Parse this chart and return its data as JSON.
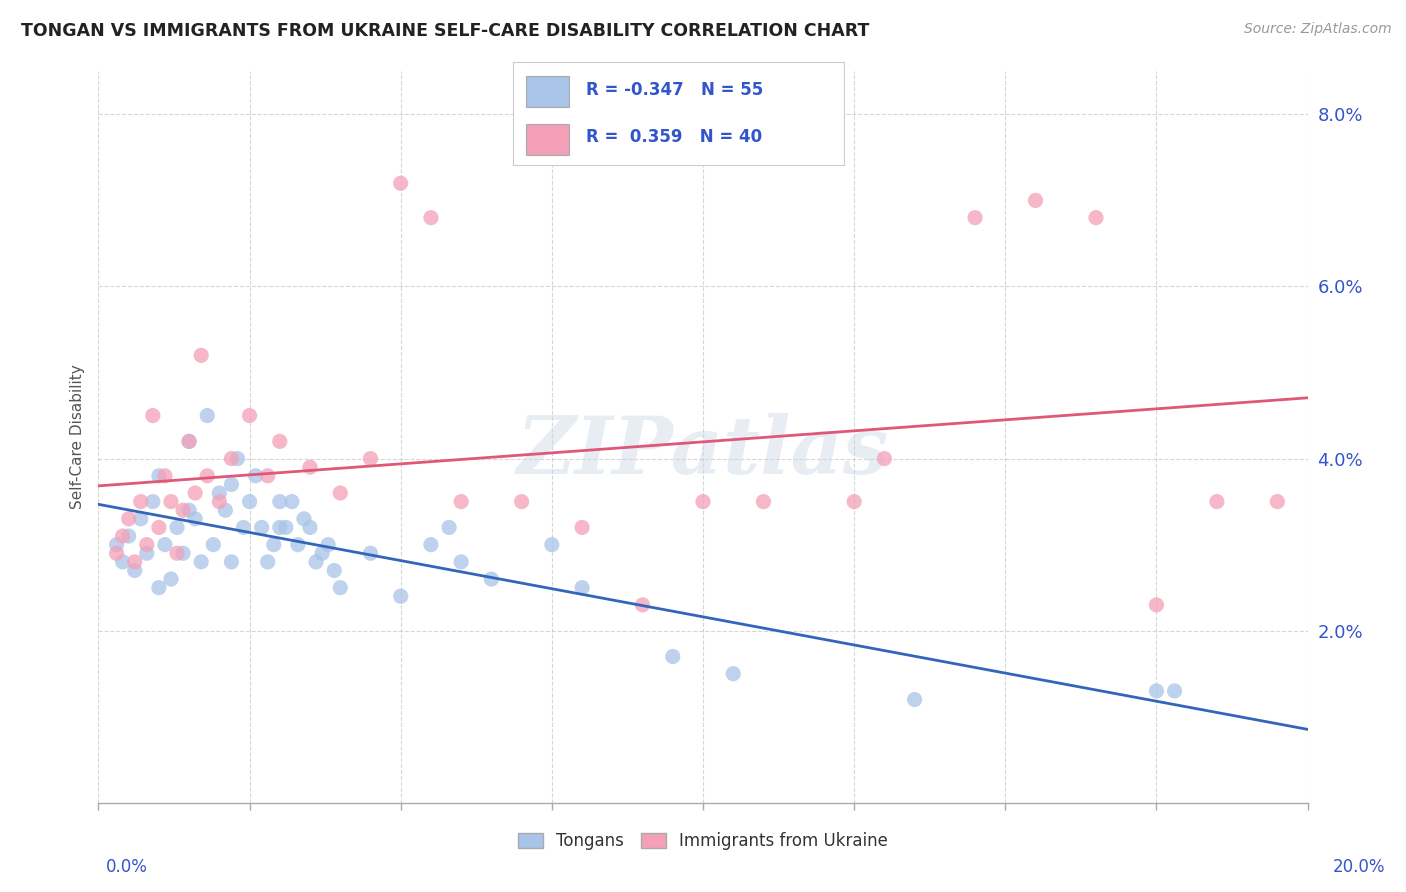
{
  "title": "TONGAN VS IMMIGRANTS FROM UKRAINE SELF-CARE DISABILITY CORRELATION CHART",
  "source": "Source: ZipAtlas.com",
  "ylabel": "Self-Care Disability",
  "xlim": [
    0.0,
    20.0
  ],
  "ylim": [
    0.0,
    8.5
  ],
  "yticks": [
    2.0,
    4.0,
    6.0,
    8.0
  ],
  "xticks": [
    0.0,
    2.5,
    5.0,
    7.5,
    10.0,
    12.5,
    15.0,
    17.5,
    20.0
  ],
  "tongan_R": -0.347,
  "tongan_N": 55,
  "ukraine_R": 0.359,
  "ukraine_N": 40,
  "legend_labels": [
    "Tongans",
    "Immigrants from Ukraine"
  ],
  "tongan_color": "#a8c4e8",
  "ukraine_color": "#f4a0b8",
  "tongan_line_color": "#3366bb",
  "ukraine_line_color": "#e05878",
  "watermark": "ZIPatlas",
  "background_color": "#ffffff",
  "grid_color": "#cccccc",
  "title_color": "#222222",
  "axis_label_color": "#3355cc",
  "tongan_points": [
    [
      0.3,
      3.0
    ],
    [
      0.4,
      2.8
    ],
    [
      0.5,
      3.1
    ],
    [
      0.6,
      2.7
    ],
    [
      0.7,
      3.3
    ],
    [
      0.8,
      2.9
    ],
    [
      0.9,
      3.5
    ],
    [
      1.0,
      3.8
    ],
    [
      1.0,
      2.5
    ],
    [
      1.1,
      3.0
    ],
    [
      1.2,
      2.6
    ],
    [
      1.3,
      3.2
    ],
    [
      1.4,
      2.9
    ],
    [
      1.5,
      4.2
    ],
    [
      1.5,
      3.4
    ],
    [
      1.6,
      3.3
    ],
    [
      1.7,
      2.8
    ],
    [
      1.8,
      4.5
    ],
    [
      1.9,
      3.0
    ],
    [
      2.0,
      3.6
    ],
    [
      2.1,
      3.4
    ],
    [
      2.2,
      3.7
    ],
    [
      2.2,
      2.8
    ],
    [
      2.3,
      4.0
    ],
    [
      2.4,
      3.2
    ],
    [
      2.5,
      3.5
    ],
    [
      2.6,
      3.8
    ],
    [
      2.7,
      3.2
    ],
    [
      2.8,
      2.8
    ],
    [
      2.9,
      3.0
    ],
    [
      3.0,
      3.5
    ],
    [
      3.0,
      3.2
    ],
    [
      3.1,
      3.2
    ],
    [
      3.2,
      3.5
    ],
    [
      3.3,
      3.0
    ],
    [
      3.4,
      3.3
    ],
    [
      3.5,
      3.2
    ],
    [
      3.6,
      2.8
    ],
    [
      3.7,
      2.9
    ],
    [
      3.8,
      3.0
    ],
    [
      3.9,
      2.7
    ],
    [
      4.0,
      2.5
    ],
    [
      4.5,
      2.9
    ],
    [
      5.0,
      2.4
    ],
    [
      5.5,
      3.0
    ],
    [
      5.8,
      3.2
    ],
    [
      6.0,
      2.8
    ],
    [
      6.5,
      2.6
    ],
    [
      7.5,
      3.0
    ],
    [
      8.0,
      2.5
    ],
    [
      9.5,
      1.7
    ],
    [
      10.5,
      1.5
    ],
    [
      13.5,
      1.2
    ],
    [
      17.5,
      1.3
    ],
    [
      17.8,
      1.3
    ]
  ],
  "ukraine_points": [
    [
      0.3,
      2.9
    ],
    [
      0.4,
      3.1
    ],
    [
      0.5,
      3.3
    ],
    [
      0.6,
      2.8
    ],
    [
      0.7,
      3.5
    ],
    [
      0.8,
      3.0
    ],
    [
      0.9,
      4.5
    ],
    [
      1.0,
      3.2
    ],
    [
      1.1,
      3.8
    ],
    [
      1.2,
      3.5
    ],
    [
      1.3,
      2.9
    ],
    [
      1.4,
      3.4
    ],
    [
      1.5,
      4.2
    ],
    [
      1.6,
      3.6
    ],
    [
      1.7,
      5.2
    ],
    [
      1.8,
      3.8
    ],
    [
      2.0,
      3.5
    ],
    [
      2.2,
      4.0
    ],
    [
      2.5,
      4.5
    ],
    [
      2.8,
      3.8
    ],
    [
      3.0,
      4.2
    ],
    [
      3.5,
      3.9
    ],
    [
      4.0,
      3.6
    ],
    [
      4.5,
      4.0
    ],
    [
      5.0,
      7.2
    ],
    [
      5.5,
      6.8
    ],
    [
      6.0,
      3.5
    ],
    [
      7.0,
      3.5
    ],
    [
      8.0,
      3.2
    ],
    [
      9.0,
      2.3
    ],
    [
      10.0,
      3.5
    ],
    [
      11.0,
      3.5
    ],
    [
      12.5,
      3.5
    ],
    [
      13.0,
      4.0
    ],
    [
      14.5,
      6.8
    ],
    [
      15.5,
      7.0
    ],
    [
      16.5,
      6.8
    ],
    [
      17.5,
      2.3
    ],
    [
      18.5,
      3.5
    ],
    [
      19.5,
      3.5
    ]
  ]
}
